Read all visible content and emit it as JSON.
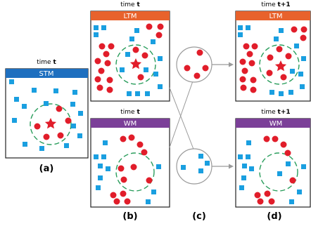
{
  "colors": {
    "stm": "#1e6fbf",
    "ltm": "#e8622c",
    "wm": "#7b3f98",
    "circle": "#e11d2a",
    "square": "#1a9fe0",
    "boundary": "#2a9d5c",
    "connector": "#9a9a9a"
  },
  "panels": {
    "stm": {
      "time": "time",
      "time_var": "t",
      "header": "STM"
    },
    "ltm_t": {
      "time": "time",
      "time_var": "t",
      "header": "LTM"
    },
    "wm_t": {
      "time": "time",
      "time_var": "t",
      "header": "WM"
    },
    "ltm_t1": {
      "time": "time",
      "time_var": "t+1",
      "header": "LTM"
    },
    "wm_t1": {
      "time": "time",
      "time_var": "t+1",
      "header": "WM"
    }
  },
  "labels": {
    "a": "(a)",
    "b": "(b)",
    "c": "(c)",
    "d": "(d)"
  },
  "target_icon": "star-icon"
}
